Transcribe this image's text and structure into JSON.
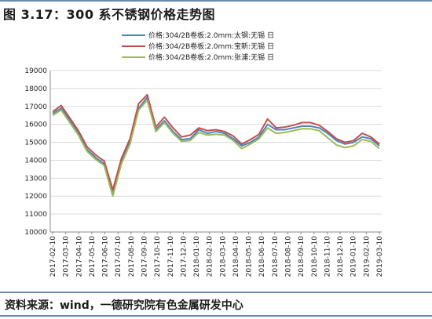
{
  "figure_title": "图 3.17：300 系不锈钢价格走势图",
  "source_text": "资料来源：wind，一德研究院有色金属研发中心",
  "colors": {
    "blue": "#4f81bd",
    "red": "#c0504d",
    "green": "#9bbb59",
    "rule": "#6b8ab0"
  },
  "chart_data": {
    "type": "line",
    "ylim": [
      10000,
      19000
    ],
    "yticks": [
      10000,
      11000,
      12000,
      13000,
      14000,
      15000,
      16000,
      17000,
      18000,
      19000
    ],
    "xticks": [
      "2017-02-10",
      "2017-03-10",
      "2017-04-10",
      "2017-05-10",
      "2017-06-10",
      "2017-07-10",
      "2017-08-10",
      "2017-09-10",
      "2017-10-10",
      "2017-11-10",
      "2017-12-10",
      "2018-01-10",
      "2018-02-10",
      "2018-03-10",
      "2018-04-10",
      "2018-05-10",
      "2018-06-10",
      "2018-07-10",
      "2018-08-10",
      "2018-09-10",
      "2018-10-10",
      "2018-11-10",
      "2018-12-10",
      "2019-01-10",
      "2019-02-10",
      "2019-03-10"
    ],
    "grid": true,
    "legend_position": "top-center",
    "series": [
      {
        "name": "价格:304/2B卷板:2.0mm:太钢:无锡 日",
        "color": "#4f81bd",
        "values": [
          16600,
          16900,
          16200,
          15500,
          14600,
          14150,
          13800,
          12100,
          13900,
          15000,
          16900,
          17500,
          15700,
          16200,
          15600,
          15150,
          15200,
          15700,
          15500,
          15600,
          15500,
          15200,
          14800,
          15000,
          15300,
          16000,
          15700,
          15700,
          15800,
          15900,
          15900,
          15800,
          15500,
          15100,
          14900,
          15000,
          15300,
          15200,
          14800
        ]
      },
      {
        "name": "价格:304/2B卷板:2.0mm:宝新:无锡 日",
        "color": "#c0504d",
        "values": [
          16700,
          17050,
          16350,
          15650,
          14750,
          14300,
          13950,
          12350,
          14100,
          15200,
          17150,
          17650,
          15850,
          16400,
          15800,
          15300,
          15400,
          15800,
          15650,
          15700,
          15600,
          15350,
          14900,
          15150,
          15450,
          16300,
          15800,
          15850,
          15950,
          16100,
          16100,
          15950,
          15600,
          15200,
          15000,
          15100,
          15500,
          15300,
          14900
        ]
      },
      {
        "name": "价格:304/2B卷板:2.0mm:张浦:无锡 日",
        "color": "#9bbb59",
        "values": [
          16500,
          16800,
          16100,
          15400,
          14500,
          14050,
          13700,
          12000,
          13800,
          14900,
          16800,
          17350,
          15600,
          16100,
          15500,
          15050,
          15100,
          15550,
          15400,
          15450,
          15400,
          15100,
          14650,
          14900,
          15200,
          15800,
          15500,
          15550,
          15650,
          15750,
          15750,
          15650,
          15250,
          14850,
          14700,
          14800,
          15150,
          15050,
          14650
        ]
      }
    ]
  }
}
